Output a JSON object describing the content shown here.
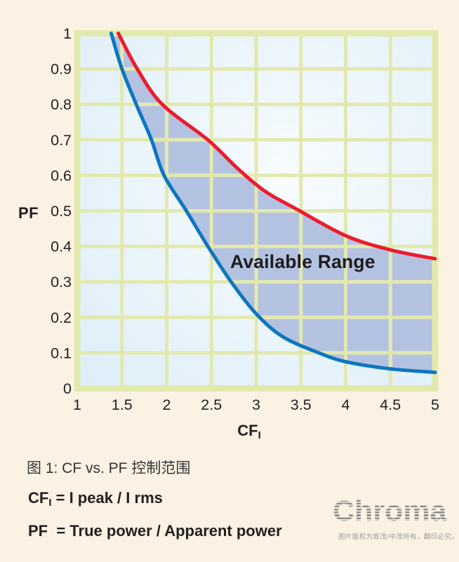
{
  "figure": {
    "caption": "图 1: CF vs. PF 控制范围",
    "formulas": [
      {
        "prefix": "CF",
        "sub": "I",
        "rest": " = I peak / I rms"
      },
      {
        "prefix": "PF",
        "sub": "",
        "rest": "  = True power / Apparent power"
      }
    ]
  },
  "branding": {
    "logo_text": "Chroma",
    "disclaimer": "图片版权为致茂/中茂所有，翻印必究。"
  },
  "chart_data": {
    "type": "area",
    "title": "",
    "xlabel": "CF",
    "xlabel_sub": "I",
    "ylabel": "PF",
    "annotation": "Available Range",
    "xlim": [
      1,
      5
    ],
    "ylim": [
      0,
      1
    ],
    "grid": true,
    "x_ticks": [
      1,
      1.5,
      2,
      2.5,
      3,
      3.5,
      4,
      4.5,
      5
    ],
    "x_tick_labels": [
      "1",
      "1.5",
      "2",
      "2.5",
      "3",
      "3.5",
      "4",
      "4.5",
      "5"
    ],
    "y_ticks": [
      0,
      0.1,
      0.2,
      0.3,
      0.4,
      0.5,
      0.6,
      0.7,
      0.8,
      0.9,
      1
    ],
    "y_tick_labels": [
      "0",
      "0.1",
      "0.2",
      "0.3",
      "0.4",
      "0.5",
      "0.6",
      "0.7",
      "0.8",
      "0.9",
      "1"
    ],
    "series": [
      {
        "name": "upper-limit",
        "color": "#ec1c2c",
        "points": [
          [
            1.46,
            1.0
          ],
          [
            1.67,
            0.9
          ],
          [
            1.95,
            0.8
          ],
          [
            2.46,
            0.7
          ],
          [
            2.79,
            0.62
          ],
          [
            3.1,
            0.555
          ],
          [
            3.45,
            0.505
          ],
          [
            4.0,
            0.43
          ],
          [
            4.5,
            0.39
          ],
          [
            5.0,
            0.365
          ]
        ]
      },
      {
        "name": "lower-limit",
        "color": "#0d76c0",
        "points": [
          [
            1.38,
            1.0
          ],
          [
            1.5,
            0.9
          ],
          [
            1.66,
            0.8
          ],
          [
            1.83,
            0.7
          ],
          [
            1.97,
            0.6
          ],
          [
            2.22,
            0.5
          ],
          [
            2.46,
            0.4
          ],
          [
            2.72,
            0.3
          ],
          [
            3.0,
            0.21
          ],
          [
            3.3,
            0.145
          ],
          [
            3.7,
            0.1
          ],
          [
            4.0,
            0.075
          ],
          [
            4.5,
            0.055
          ],
          [
            5.0,
            0.045
          ]
        ]
      }
    ],
    "region_between_series": "shaded available range",
    "colors": {
      "region_fill": "#b4c2e2",
      "grid": "#e2e9ad",
      "plot_bg_edge": "#dcedf8",
      "plot_bg_center": "#f8fcfe",
      "page_bg": "#fcf2e3",
      "text": "#231f20"
    }
  }
}
